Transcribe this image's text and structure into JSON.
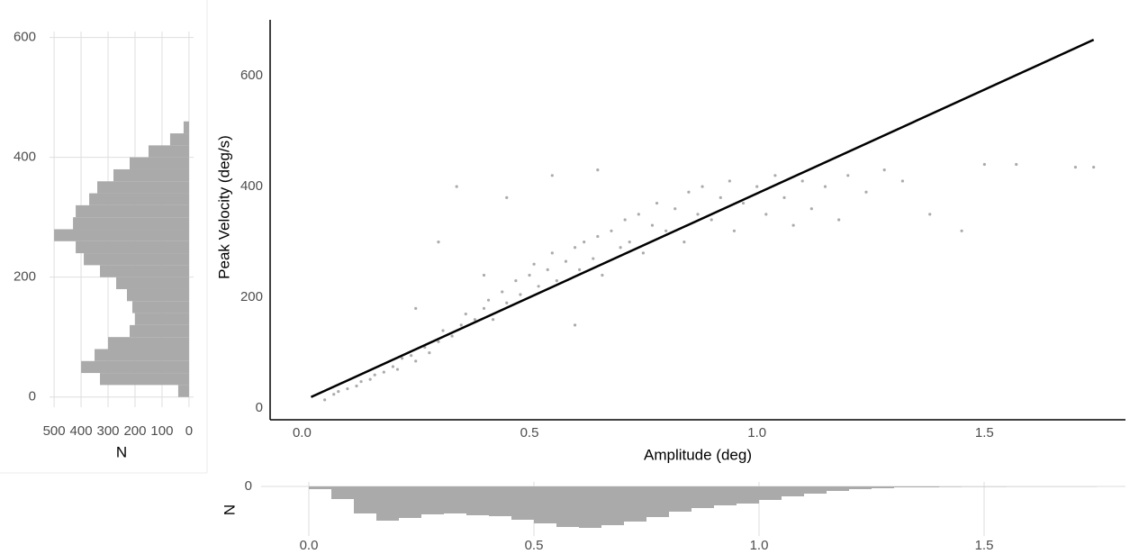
{
  "chart_data": [
    {
      "type": "scatter",
      "xlabel": "Amplitude (deg)",
      "ylabel": "Peak Velocity (deg/s)",
      "xlim": [
        -0.07,
        1.81
      ],
      "ylim": [
        -21,
        701
      ],
      "xticks": [
        {
          "value": 0,
          "label": "0.0"
        },
        {
          "value": 0.5,
          "label": "0.5"
        },
        {
          "value": 1,
          "label": "1.0"
        },
        {
          "value": 1.5,
          "label": "1.5"
        }
      ],
      "yticks": [
        0,
        200,
        400,
        600
      ],
      "series": [
        {
          "type": "scatter",
          "color": "#444444",
          "x": [
            0.05,
            0.07,
            0.08,
            0.1,
            0.12,
            0.13,
            0.15,
            0.16,
            0.18,
            0.2,
            0.21,
            0.22,
            0.24,
            0.25,
            0.27,
            0.28,
            0.3,
            0.31,
            0.33,
            0.35,
            0.36,
            0.38,
            0.4,
            0.41,
            0.42,
            0.44,
            0.45,
            0.47,
            0.48,
            0.5,
            0.51,
            0.52,
            0.54,
            0.55,
            0.56,
            0.58,
            0.6,
            0.61,
            0.62,
            0.64,
            0.65,
            0.66,
            0.68,
            0.7,
            0.71,
            0.72,
            0.74,
            0.75,
            0.77,
            0.78,
            0.8,
            0.82,
            0.84,
            0.85,
            0.87,
            0.88,
            0.9,
            0.92,
            0.94,
            0.95,
            0.97,
            1.0,
            1.02,
            1.04,
            1.06,
            1.08,
            1.1,
            1.12,
            1.15,
            1.18,
            1.2,
            1.24,
            1.28,
            1.32,
            1.38,
            1.45,
            1.5,
            1.57,
            1.7,
            1.74,
            0.34,
            0.3,
            0.55,
            0.65,
            0.45,
            0.6,
            0.4,
            0.25
          ],
          "values": [
            15,
            25,
            30,
            35,
            40,
            48,
            52,
            60,
            65,
            75,
            70,
            90,
            95,
            85,
            110,
            100,
            120,
            140,
            130,
            150,
            170,
            160,
            180,
            195,
            160,
            210,
            190,
            230,
            205,
            240,
            260,
            220,
            250,
            280,
            230,
            265,
            290,
            250,
            300,
            270,
            310,
            240,
            320,
            290,
            340,
            300,
            350,
            280,
            330,
            370,
            320,
            360,
            300,
            390,
            350,
            400,
            340,
            380,
            410,
            320,
            370,
            400,
            350,
            420,
            380,
            330,
            410,
            360,
            400,
            340,
            420,
            390,
            430,
            410,
            350,
            320,
            440,
            440,
            435,
            435,
            400,
            300,
            420,
            430,
            380,
            150,
            240,
            180
          ]
        },
        {
          "type": "line",
          "color": "#000000",
          "x": [
            0.02,
            1.74
          ],
          "values": [
            20,
            665
          ]
        }
      ]
    },
    {
      "type": "histogram",
      "orientation": "horizontal",
      "xlabel": "N",
      "color": "#aaaaaa",
      "grid": true,
      "bins": [
        0,
        20,
        40,
        60,
        80,
        100,
        120,
        140,
        160,
        180,
        200,
        220,
        240,
        260,
        280,
        300,
        320,
        340,
        360,
        380,
        400,
        420,
        440,
        460
      ],
      "values": [
        40,
        330,
        400,
        350,
        300,
        220,
        200,
        210,
        230,
        270,
        330,
        390,
        420,
        500,
        430,
        420,
        370,
        340,
        280,
        220,
        150,
        70,
        20
      ],
      "xlim": [
        517,
        -17
      ],
      "xticks": [
        500,
        400,
        300,
        200,
        100,
        0
      ],
      "ylim": [
        -17,
        610
      ],
      "yticks": [
        0,
        200,
        400,
        600
      ]
    },
    {
      "type": "histogram",
      "orientation": "down",
      "ylabel": "N",
      "color": "#aaaaaa",
      "grid": true,
      "bins": [
        0,
        0.05,
        0.1,
        0.15,
        0.2,
        0.25,
        0.3,
        0.35,
        0.4,
        0.45,
        0.5,
        0.55,
        0.6,
        0.65,
        0.7,
        0.75,
        0.8,
        0.85,
        0.9,
        0.95,
        1,
        1.05,
        1.1,
        1.15,
        1.2,
        1.25,
        1.3,
        1.35,
        1.4,
        1.45,
        1.5,
        1.55,
        1.6,
        1.65,
        1.7,
        1.75
      ],
      "values": [
        15,
        70,
        150,
        190,
        175,
        155,
        150,
        160,
        165,
        185,
        205,
        225,
        230,
        215,
        195,
        170,
        140,
        120,
        105,
        95,
        75,
        55,
        40,
        25,
        15,
        10,
        5,
        5,
        3,
        2,
        2,
        1,
        1,
        1,
        1
      ],
      "xlim": [
        -0.106,
        1.814
      ],
      "xticks": [
        {
          "value": 0,
          "label": "0.0"
        },
        {
          "value": 0.5,
          "label": "0.5"
        },
        {
          "value": 1,
          "label": "1.0"
        },
        {
          "value": 1.5,
          "label": "1.5"
        }
      ],
      "ylim": [
        0,
        375
      ],
      "yticks": [
        0
      ]
    }
  ]
}
